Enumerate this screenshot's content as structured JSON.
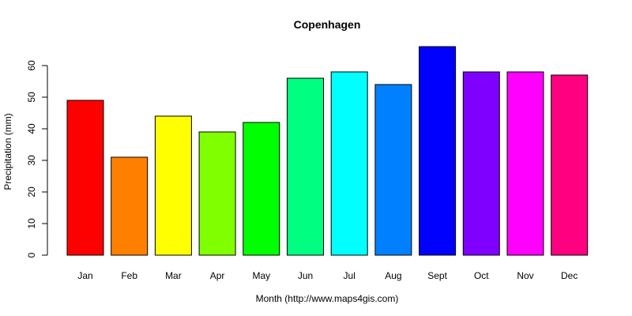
{
  "chart_data": {
    "type": "bar",
    "title": "Copenhagen",
    "xlabel": "Month (http://www.maps4gis.com)",
    "ylabel": "Precipitation (mm)",
    "categories": [
      "Jan",
      "Feb",
      "Mar",
      "Apr",
      "May",
      "Jun",
      "Jul",
      "Aug",
      "Sept",
      "Oct",
      "Nov",
      "Dec"
    ],
    "values": [
      49,
      31,
      44,
      39,
      42,
      56,
      58,
      54,
      66,
      58,
      58,
      57
    ],
    "colors": [
      "#FF0000",
      "#FF8000",
      "#FFFF00",
      "#80FF00",
      "#00FF00",
      "#00FF80",
      "#00FFFF",
      "#0080FF",
      "#0000FF",
      "#8000FF",
      "#FF00FF",
      "#FF0080"
    ],
    "ylim": [
      0,
      66
    ],
    "yticks": [
      0,
      10,
      20,
      30,
      40,
      50,
      60
    ],
    "grid": false,
    "legend": "none"
  }
}
